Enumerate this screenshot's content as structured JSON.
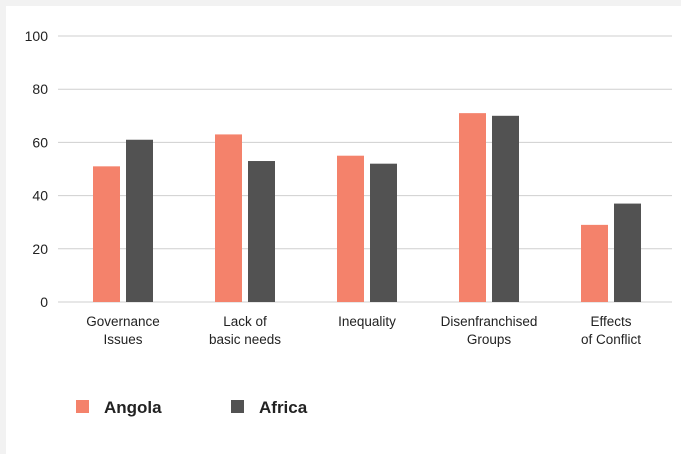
{
  "chart_data": {
    "type": "bar",
    "categories": [
      [
        "Governance",
        "Issues"
      ],
      [
        "Lack of",
        "basic needs"
      ],
      [
        "Inequality"
      ],
      [
        "Disenfranchised",
        "Groups"
      ],
      [
        "Effects",
        "of Conflict"
      ]
    ],
    "series": [
      {
        "name": "Angola",
        "color": "#f4826b",
        "values": [
          51,
          63,
          55,
          71,
          29
        ]
      },
      {
        "name": "Africa",
        "color": "#525252",
        "values": [
          61,
          53,
          52,
          70,
          37
        ]
      }
    ],
    "ylim": [
      0,
      100
    ],
    "yticks": [
      "0",
      "20",
      "40",
      "60",
      "80",
      "100"
    ],
    "grid": true,
    "legend_position": "bottom-left"
  }
}
